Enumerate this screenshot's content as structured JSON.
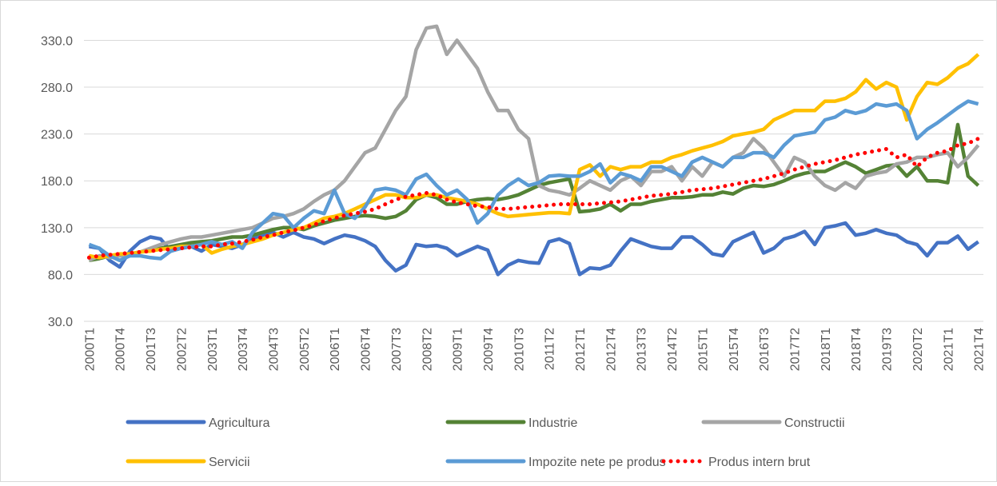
{
  "chart_data": {
    "type": "line",
    "categories": [
      "2000T1",
      null,
      null,
      "2000T4",
      null,
      null,
      "2001T3",
      null,
      null,
      "2002T2",
      null,
      null,
      "2003T1",
      null,
      null,
      "2003T4",
      null,
      null,
      "2004T3",
      null,
      null,
      "2005T2",
      null,
      null,
      "2006T1",
      null,
      null,
      "2006T4",
      null,
      null,
      "2007T3",
      null,
      null,
      "2008T2",
      null,
      null,
      "2009T1",
      null,
      null,
      "2009T4",
      null,
      null,
      "2010T3",
      null,
      null,
      "2011T2",
      null,
      null,
      "2012T1",
      null,
      null,
      "2012T4",
      null,
      null,
      "2013T3",
      null,
      null,
      "2014T2",
      null,
      null,
      "2015T1",
      null,
      null,
      "2015T4",
      null,
      null,
      "2016T3",
      null,
      null,
      "2017T2",
      null,
      null,
      "2018T1",
      null,
      null,
      "2018T4",
      null,
      null,
      "2019T3",
      null,
      null,
      "2020T2",
      null,
      null,
      "2021T1",
      null,
      null,
      "2021T4"
    ],
    "series": [
      {
        "name": "Agricultura",
        "color": "#4472c4",
        "values": [
          110,
          108,
          95,
          88,
          105,
          115,
          120,
          118,
          105,
          108,
          110,
          105,
          112,
          110,
          108,
          112,
          118,
          122,
          125,
          120,
          125,
          120,
          118,
          113,
          118,
          122,
          120,
          116,
          110,
          95,
          84,
          90,
          112,
          110,
          111,
          108,
          100,
          105,
          110,
          106,
          80,
          90,
          95,
          93,
          92,
          115,
          118,
          113,
          80,
          87,
          86,
          90,
          105,
          118,
          114,
          110,
          108,
          108,
          120,
          120,
          112,
          102,
          100,
          115,
          120,
          125,
          103,
          108,
          118,
          121,
          126,
          112,
          130,
          132,
          135,
          122,
          124,
          128,
          124,
          122,
          115,
          112,
          100,
          114,
          114,
          121,
          107,
          115
        ]
      },
      {
        "name": "Industrie",
        "color": "#548235",
        "values": [
          95,
          97,
          100,
          100,
          102,
          104,
          106,
          108,
          110,
          112,
          114,
          115,
          116,
          118,
          120,
          120,
          122,
          125,
          128,
          130,
          130,
          128,
          132,
          135,
          138,
          140,
          142,
          143,
          142,
          140,
          142,
          148,
          160,
          165,
          162,
          155,
          155,
          158,
          160,
          161,
          160,
          162,
          165,
          170,
          175,
          178,
          180,
          182,
          147,
          148,
          150,
          155,
          148,
          155,
          155,
          158,
          160,
          162,
          162,
          163,
          165,
          165,
          168,
          166,
          172,
          175,
          174,
          176,
          180,
          185,
          188,
          190,
          190,
          195,
          200,
          195,
          188,
          192,
          196,
          197,
          185,
          195,
          180,
          180,
          178,
          240,
          185,
          175
        ]
      },
      {
        "name": "Constructii",
        "color": "#a5a5a5",
        "values": [
          95,
          100,
          98,
          100,
          100,
          104,
          108,
          112,
          115,
          118,
          120,
          120,
          122,
          124,
          126,
          128,
          130,
          135,
          140,
          142,
          145,
          150,
          158,
          165,
          170,
          180,
          195,
          210,
          215,
          235,
          255,
          270,
          320,
          343,
          345,
          315,
          330,
          315,
          300,
          275,
          255,
          255,
          235,
          225,
          175,
          170,
          168,
          165,
          172,
          180,
          175,
          170,
          180,
          185,
          175,
          190,
          190,
          195,
          180,
          195,
          185,
          200,
          195,
          205,
          210,
          225,
          215,
          200,
          185,
          205,
          200,
          185,
          175,
          170,
          178,
          172,
          185,
          188,
          190,
          198,
          200,
          205,
          205,
          208,
          210,
          195,
          205,
          218
        ]
      },
      {
        "name": "Servicii",
        "color": "#ffc000",
        "values": [
          100,
          98,
          100,
          102,
          102,
          104,
          105,
          107,
          108,
          110,
          110,
          112,
          103,
          107,
          110,
          112,
          115,
          118,
          122,
          125,
          128,
          130,
          135,
          140,
          142,
          145,
          150,
          155,
          160,
          165,
          165,
          162,
          162,
          165,
          165,
          162,
          160,
          158,
          155,
          150,
          145,
          142,
          143,
          144,
          145,
          146,
          146,
          145,
          192,
          197,
          185,
          195,
          192,
          195,
          195,
          200,
          200,
          205,
          208,
          212,
          215,
          218,
          222,
          228,
          230,
          232,
          235,
          245,
          250,
          255,
          255,
          255,
          265,
          265,
          268,
          275,
          288,
          278,
          285,
          280,
          245,
          270,
          285,
          283,
          290,
          300,
          305,
          315
        ]
      },
      {
        "name": "Impozite nete pe produs",
        "color": "#5b9bd5",
        "values": [
          112,
          108,
          100,
          95,
          100,
          100,
          98,
          97,
          105,
          108,
          110,
          112,
          115,
          112,
          115,
          108,
          125,
          135,
          145,
          143,
          130,
          140,
          148,
          145,
          170,
          145,
          140,
          152,
          170,
          172,
          170,
          165,
          182,
          187,
          175,
          165,
          170,
          160,
          135,
          145,
          165,
          175,
          182,
          175,
          178,
          185,
          186,
          185,
          185,
          190,
          198,
          178,
          188,
          185,
          180,
          195,
          195,
          190,
          185,
          200,
          205,
          200,
          195,
          205,
          205,
          210,
          210,
          205,
          218,
          228,
          230,
          232,
          245,
          248,
          255,
          252,
          255,
          262,
          260,
          262,
          255,
          225,
          235,
          242,
          250,
          258,
          265,
          262
        ]
      },
      {
        "name": "Produs intern brut",
        "color": "#ff0000",
        "dash": "dotted",
        "values": [
          98,
          100,
          101,
          102,
          103,
          104,
          105,
          106,
          107,
          108,
          109,
          110,
          110,
          112,
          113,
          115,
          117,
          120,
          122,
          125,
          127,
          130,
          133,
          137,
          140,
          143,
          145,
          147,
          150,
          155,
          160,
          163,
          165,
          167,
          165,
          160,
          157,
          155,
          153,
          152,
          150,
          150,
          151,
          152,
          153,
          154,
          155,
          155,
          155,
          155,
          156,
          157,
          158,
          160,
          162,
          164,
          165,
          166,
          168,
          170,
          171,
          172,
          174,
          176,
          178,
          180,
          182,
          185,
          188,
          192,
          195,
          198,
          200,
          202,
          205,
          208,
          210,
          212,
          214,
          205,
          208,
          195,
          205,
          210,
          212,
          218,
          220,
          225
        ]
      }
    ],
    "ylim": [
      30,
      350
    ],
    "yticks": [
      {
        "value": 30,
        "label": "30.0"
      },
      {
        "value": 80,
        "label": "80.0"
      },
      {
        "value": 130,
        "label": "130.0"
      },
      {
        "value": 180,
        "label": "180.0"
      },
      {
        "value": 230,
        "label": "230.0"
      },
      {
        "value": 280,
        "label": "280.0"
      },
      {
        "value": 330,
        "label": "330.0"
      }
    ],
    "grid": true,
    "legend": "bottom"
  }
}
